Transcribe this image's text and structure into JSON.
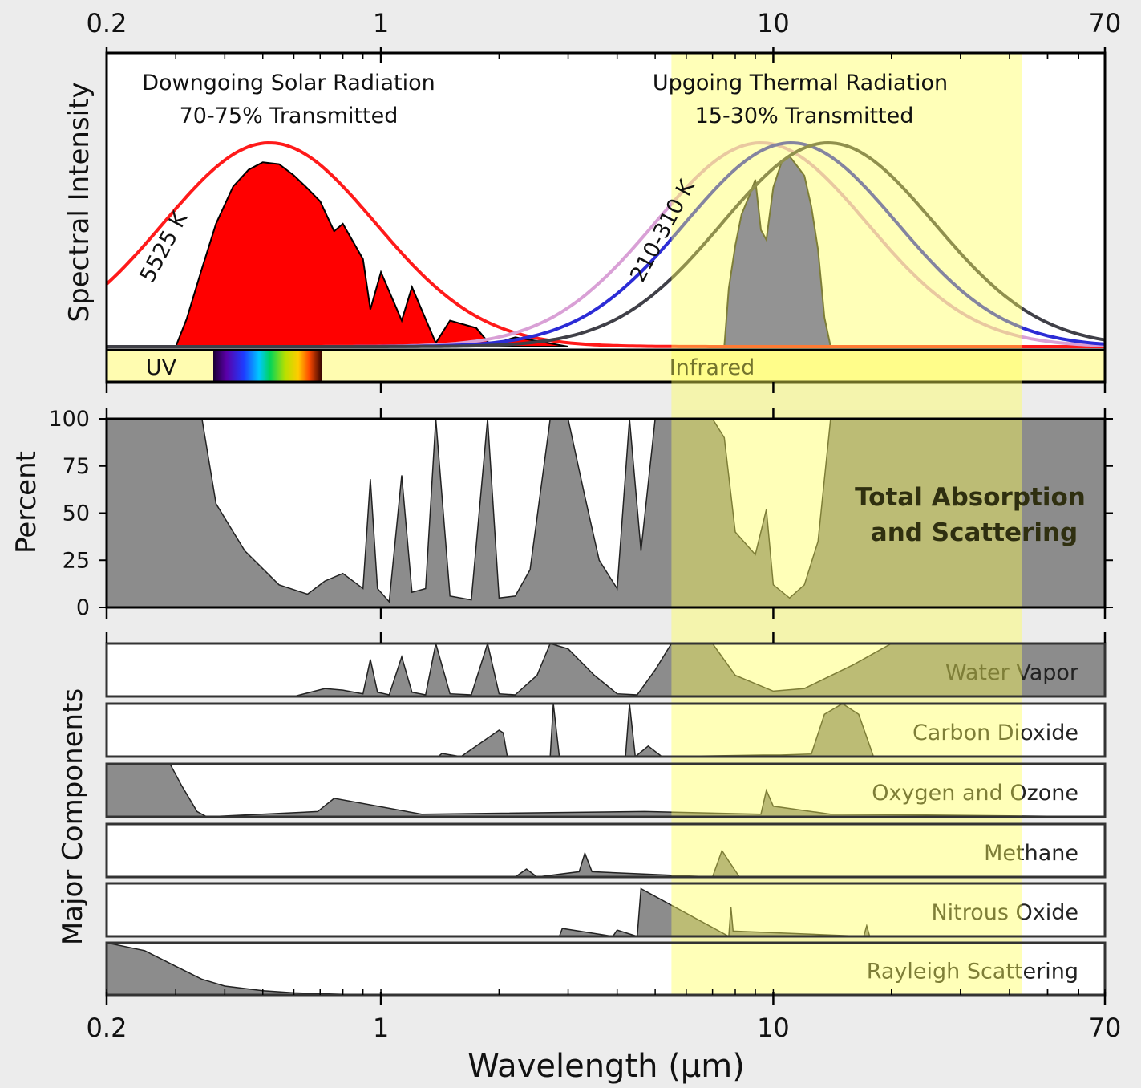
{
  "chart_data": {
    "type": "area",
    "xscale": "log",
    "xlim": [
      0.2,
      70
    ],
    "x_ticks": [
      "0.2",
      "1",
      "10",
      "70"
    ],
    "xlabel": "Wavelength (μm)",
    "ylabel_top": "Spectral Intensity",
    "ylabel_middle": "Percent",
    "ylabel_bottom": "Major Components",
    "percent_ticks": [
      "100",
      "75",
      "50",
      "25",
      "0"
    ],
    "ylim_percent": [
      0,
      100
    ],
    "annotations": {
      "solar_title": "Downgoing Solar Radiation",
      "solar_sub": "70-75% Transmitted",
      "thermal_title": "Upgoing Thermal Radiation",
      "thermal_sub": "15-30% Transmitted",
      "solar_temp": "5525 K",
      "thermal_temp": "210-310 K",
      "total_line1": "Total Absorption",
      "total_line2": "and Scattering"
    },
    "band_labels": {
      "uv": "UV",
      "infrared": "Infrared"
    },
    "thermal_window_um": [
      5.5,
      43
    ],
    "blackbody_solar": {
      "temperature_K": 5525,
      "peak_um": 0.52
    },
    "blackbody_thermal": [
      {
        "temperature_K": 310,
        "peak_um": 9.3,
        "color": "#d9a0d6"
      },
      {
        "temperature_K": 260,
        "peak_um": 11.1,
        "color": "#2c2cd6"
      },
      {
        "temperature_K": 210,
        "peak_um": 13.8,
        "color": "#404048"
      }
    ],
    "solar_transmitted": {
      "x": [
        0.3,
        0.32,
        0.35,
        0.38,
        0.42,
        0.46,
        0.5,
        0.55,
        0.6,
        0.65,
        0.7,
        0.76,
        0.8,
        0.9,
        0.94,
        1.0,
        1.13,
        1.2,
        1.38,
        1.5,
        1.75,
        1.9,
        2.2,
        2.5,
        3.0
      ],
      "y": [
        0,
        0.15,
        0.42,
        0.66,
        0.86,
        0.95,
        0.99,
        0.98,
        0.92,
        0.85,
        0.78,
        0.62,
        0.66,
        0.47,
        0.2,
        0.4,
        0.14,
        0.32,
        0.02,
        0.14,
        0.1,
        0.01,
        0.05,
        0.03,
        0
      ]
    },
    "thermal_transmitted": {
      "x": [
        7.5,
        7.7,
        8.0,
        8.3,
        8.7,
        9.0,
        9.3,
        9.6,
        10.0,
        10.5,
        11.0,
        11.5,
        12.0,
        12.5,
        13.0,
        13.5,
        14.0
      ],
      "y": [
        0,
        0.3,
        0.52,
        0.68,
        0.78,
        0.86,
        0.6,
        0.55,
        0.82,
        0.95,
        0.98,
        0.93,
        0.88,
        0.72,
        0.5,
        0.15,
        0
      ]
    },
    "total_absorption": {
      "x": [
        0.2,
        0.35,
        0.38,
        0.45,
        0.55,
        0.65,
        0.72,
        0.8,
        0.9,
        0.94,
        0.98,
        1.05,
        1.13,
        1.2,
        1.3,
        1.38,
        1.5,
        1.7,
        1.87,
        2.0,
        2.2,
        2.4,
        2.7,
        3.0,
        3.3,
        3.6,
        4.0,
        4.3,
        4.6,
        5.0,
        5.5,
        7.0,
        7.5,
        8.0,
        9.0,
        9.6,
        10.0,
        11.0,
        12.0,
        13.0,
        14.0,
        15.0,
        20.0,
        70.0
      ],
      "y": [
        100,
        100,
        55,
        30,
        12,
        7,
        14,
        18,
        10,
        68,
        10,
        3,
        70,
        8,
        10,
        100,
        6,
        4,
        100,
        5,
        6,
        20,
        100,
        100,
        60,
        25,
        10,
        100,
        30,
        100,
        100,
        100,
        90,
        40,
        28,
        52,
        12,
        5,
        12,
        35,
        100,
        100,
        100,
        100
      ]
    },
    "components": [
      {
        "label": "Water Vapor",
        "x": [
          0.2,
          0.6,
          0.72,
          0.8,
          0.9,
          0.94,
          0.98,
          1.05,
          1.13,
          1.2,
          1.3,
          1.38,
          1.5,
          1.7,
          1.87,
          2.0,
          2.2,
          2.5,
          2.7,
          3.0,
          3.5,
          4.0,
          4.5,
          5.0,
          5.5,
          7.0,
          8.0,
          10.0,
          12.0,
          16.0,
          20.0,
          25.0,
          70.0
        ],
        "y": [
          0,
          0,
          15,
          12,
          5,
          70,
          8,
          3,
          75,
          8,
          3,
          100,
          5,
          3,
          100,
          5,
          3,
          40,
          100,
          90,
          40,
          5,
          3,
          50,
          100,
          100,
          40,
          10,
          15,
          60,
          100,
          100,
          100
        ]
      },
      {
        "label": "Carbon Dioxide",
        "x": [
          0.2,
          1.4,
          1.43,
          1.6,
          2.0,
          2.05,
          2.1,
          2.7,
          2.75,
          2.85,
          4.2,
          4.3,
          4.45,
          4.8,
          5.2,
          9.4,
          10.4,
          12.5,
          13.5,
          15.0,
          16.5,
          18.0,
          70.0
        ],
        "y": [
          0,
          0,
          6,
          0,
          50,
          45,
          0,
          0,
          100,
          0,
          0,
          100,
          0,
          20,
          0,
          3,
          3,
          5,
          80,
          100,
          80,
          0,
          0
        ]
      },
      {
        "label": "Oxygen and Ozone",
        "x": [
          0.2,
          0.29,
          0.31,
          0.34,
          0.36,
          0.69,
          0.76,
          1.27,
          4.7,
          9.3,
          9.6,
          10.0,
          14.0,
          15.0,
          70.0
        ],
        "y": [
          100,
          100,
          60,
          10,
          0,
          10,
          35,
          5,
          10,
          5,
          50,
          20,
          5,
          5,
          0
        ]
      },
      {
        "label": "Methane",
        "x": [
          0.2,
          2.2,
          2.35,
          2.5,
          3.2,
          3.31,
          3.45,
          7.0,
          7.4,
          7.7,
          8.2,
          70.0
        ],
        "y": [
          0,
          0,
          15,
          0,
          10,
          45,
          10,
          0,
          50,
          30,
          0,
          0
        ]
      },
      {
        "label": "Nitrous Oxide",
        "x": [
          0.2,
          2.85,
          2.9,
          3.9,
          4.0,
          4.5,
          4.6,
          7.7,
          7.8,
          7.9,
          17.0,
          17.3,
          17.6,
          70.0
        ],
        "y": [
          0,
          0,
          15,
          0,
          12,
          0,
          90,
          0,
          55,
          10,
          0,
          20,
          0,
          0
        ]
      },
      {
        "label": "Rayleigh Scattering",
        "x": [
          0.2,
          0.25,
          0.3,
          0.35,
          0.4,
          0.5,
          0.6,
          0.8,
          1.0
        ],
        "y": [
          100,
          85,
          55,
          30,
          17,
          8,
          4,
          1,
          0
        ]
      }
    ]
  }
}
